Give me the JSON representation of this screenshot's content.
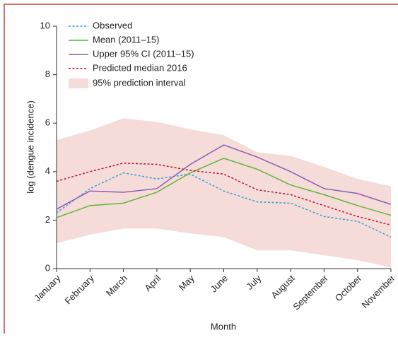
{
  "chart_data": {
    "type": "line",
    "x_label": "Month",
    "y_label": "log (dengue incidence)",
    "categories": [
      "January",
      "February",
      "March",
      "April",
      "May",
      "June",
      "July",
      "August",
      "September",
      "October",
      "November"
    ],
    "ylim": [
      0,
      10
    ],
    "yticks": [
      0,
      2,
      4,
      6,
      8,
      10
    ],
    "band": {
      "name": "95% prediction interval",
      "color": "#f6dcd8",
      "lower": [
        1.05,
        1.4,
        1.65,
        1.65,
        1.45,
        1.3,
        0.75,
        0.75,
        0.55,
        0.35,
        0.05
      ],
      "upper": [
        5.3,
        5.7,
        6.2,
        6.05,
        5.75,
        5.5,
        4.8,
        4.65,
        4.2,
        3.7,
        3.4
      ]
    },
    "series": [
      {
        "name": "Observed",
        "color": "#2a9fd6",
        "dashed": true,
        "values": [
          2.3,
          3.3,
          3.95,
          3.7,
          3.9,
          3.2,
          2.75,
          2.7,
          2.15,
          1.95,
          1.3
        ]
      },
      {
        "name": "Mean (2011–15)",
        "color": "#5fb43a",
        "dashed": false,
        "values": [
          2.1,
          2.6,
          2.7,
          3.15,
          3.95,
          4.55,
          4.1,
          3.45,
          3.05,
          2.6,
          2.2
        ]
      },
      {
        "name": "Upper 95% CI (2011–15)",
        "color": "#8e5bb5",
        "dashed": false,
        "values": [
          2.45,
          3.2,
          3.15,
          3.3,
          4.3,
          5.1,
          4.6,
          4.0,
          3.3,
          3.1,
          2.65
        ]
      },
      {
        "name": "Predicted median 2016",
        "color": "#b0133a",
        "dashed": true,
        "values": [
          3.6,
          4.0,
          4.35,
          4.3,
          4.05,
          3.9,
          3.25,
          3.05,
          2.6,
          2.15,
          1.8
        ]
      }
    ]
  }
}
